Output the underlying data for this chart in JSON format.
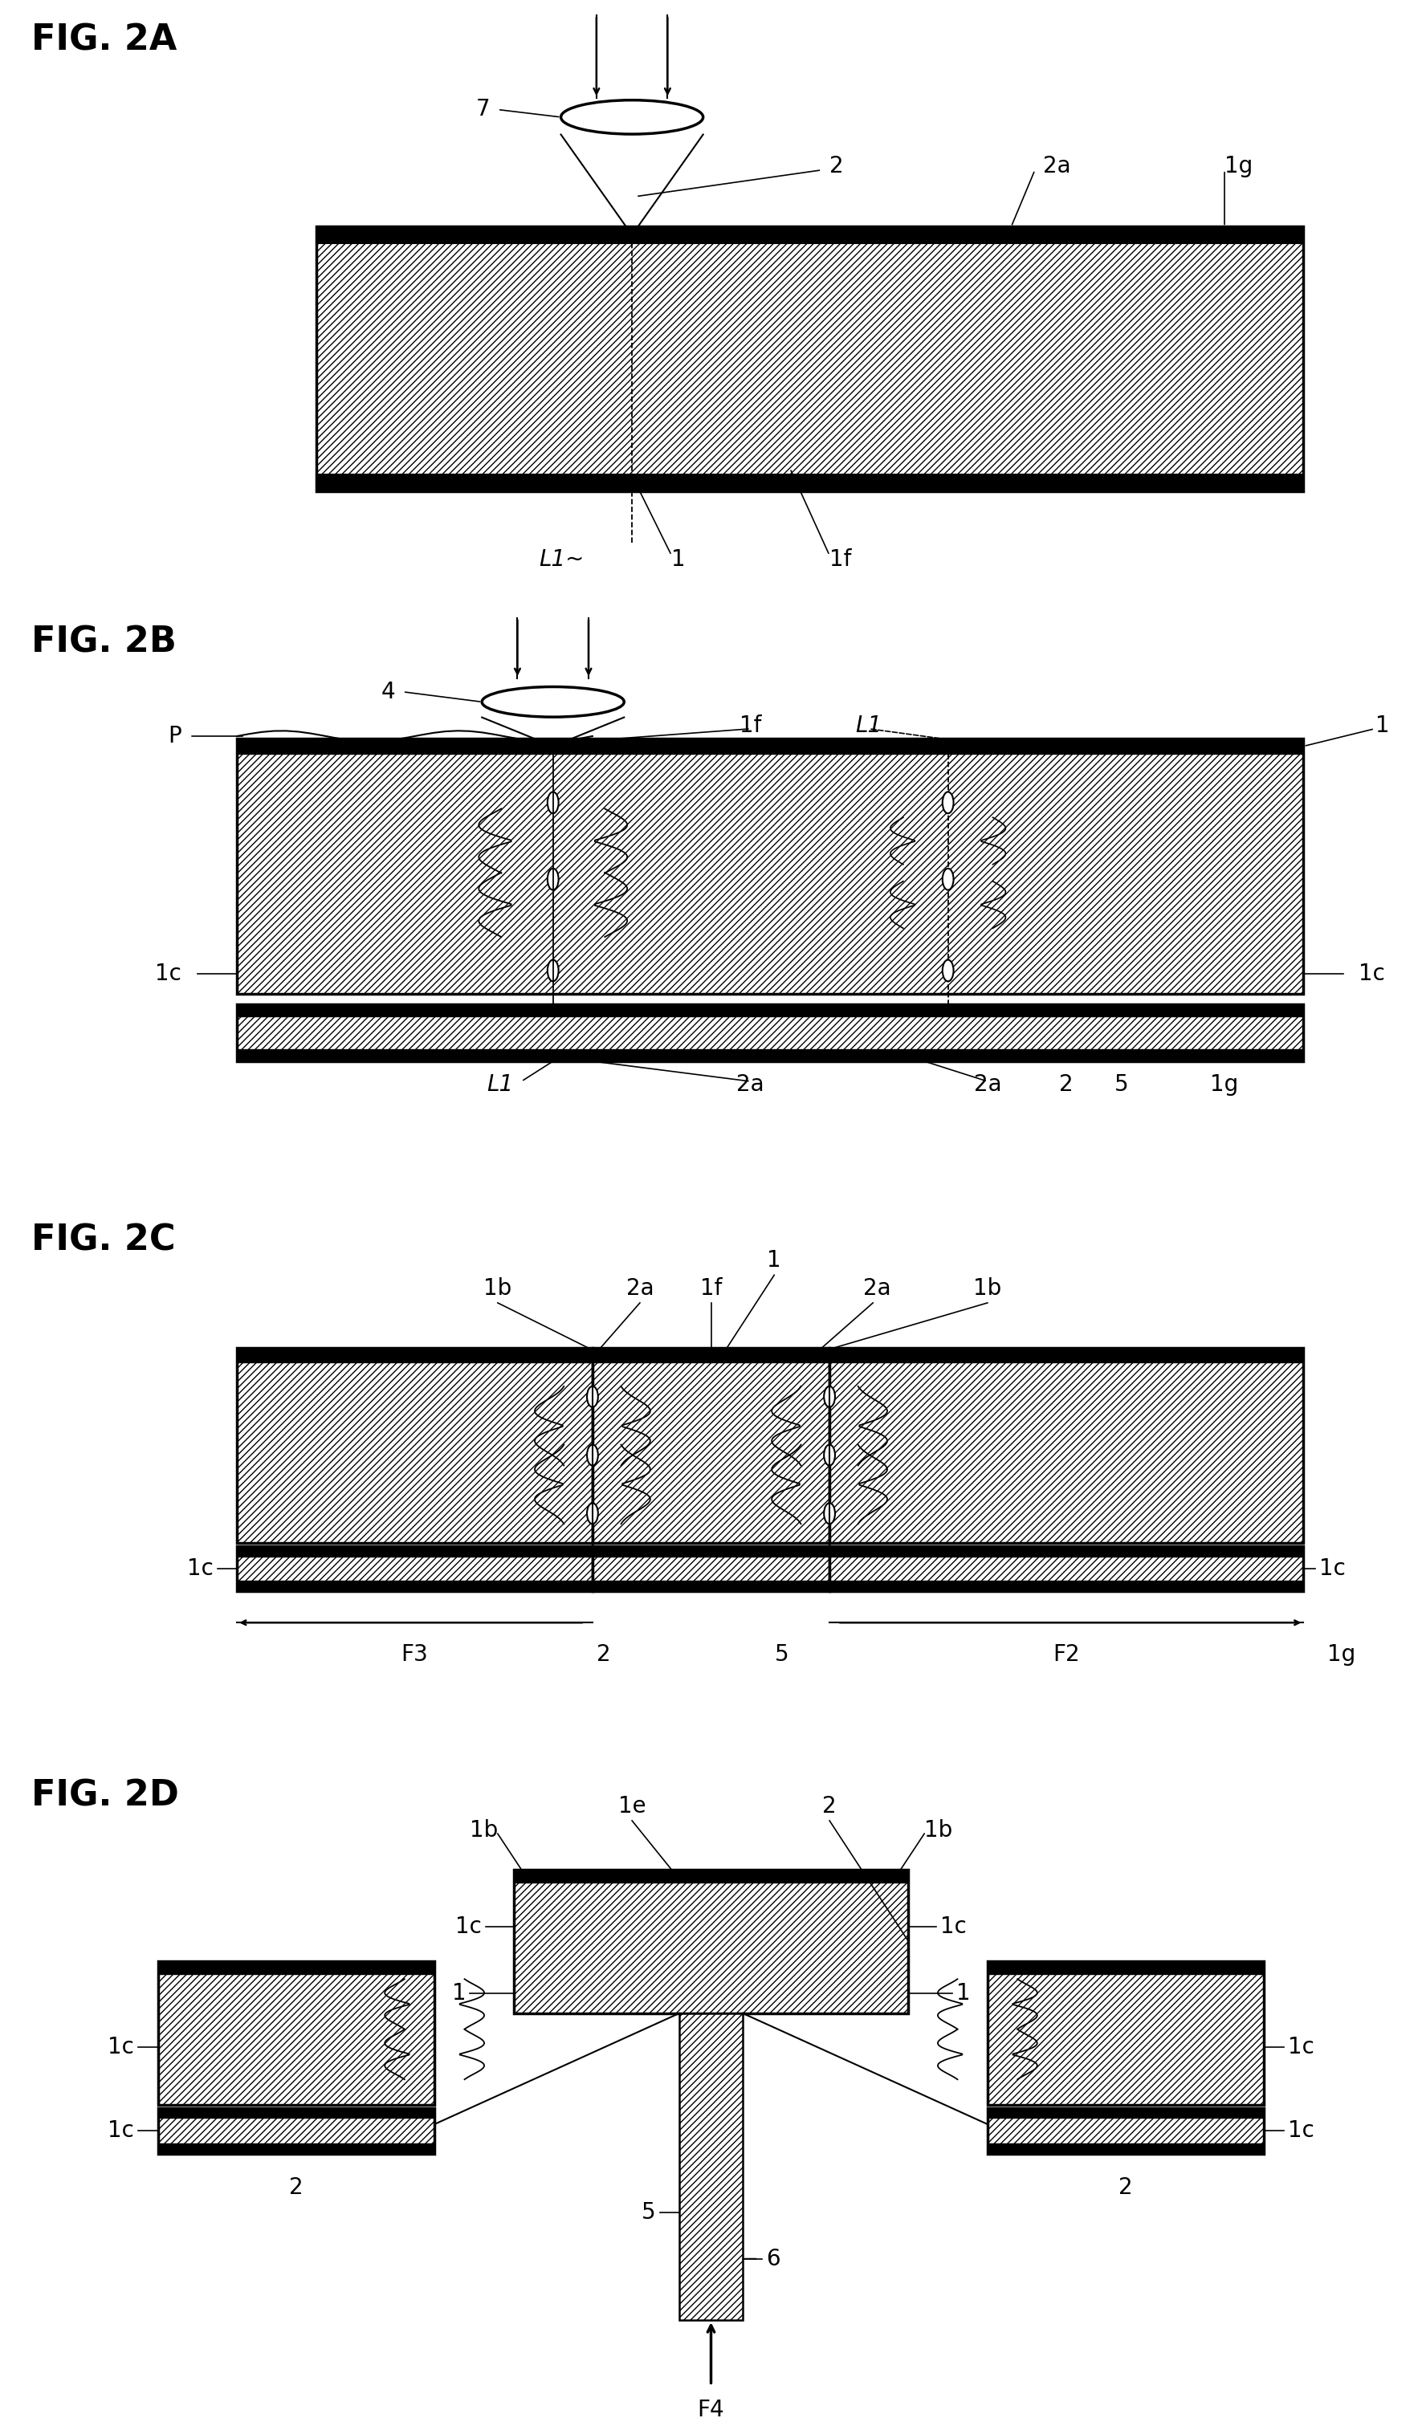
{
  "fig_labels": [
    "FIG. 2A",
    "FIG. 2B",
    "FIG. 2C",
    "FIG. 2D"
  ],
  "background_color": "#ffffff",
  "line_color": "#000000",
  "hatch_pattern": "////",
  "fig_label_fontsize": 32,
  "annotation_fontsize": 20
}
